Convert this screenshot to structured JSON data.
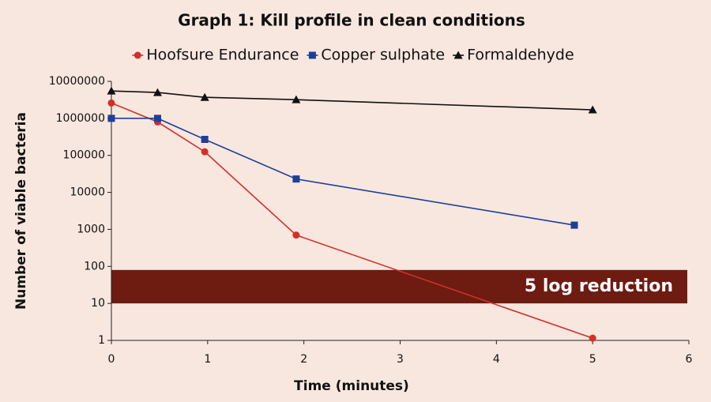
{
  "chart_data": {
    "type": "line",
    "title": "Graph 1: Kill profile in clean conditions",
    "x_label": "Time (minutes)",
    "y_label": "Number of viable bacteria",
    "y_log": true,
    "grid": false,
    "legend": "top",
    "xlim": [
      0,
      6
    ],
    "xticks": [
      0,
      1,
      2,
      3,
      4,
      5,
      6
    ],
    "ylim": [
      1,
      10000000
    ],
    "yticks": [
      1,
      10,
      100,
      1000,
      10000,
      100000,
      1000000,
      10000000
    ],
    "series": [
      {
        "name": "Hoofsure Endurance",
        "color": "#d2302a",
        "marker": "circle",
        "x": [
          0,
          0.48,
          0.97,
          1.92,
          5.0
        ],
        "values": [
          2600000,
          800000,
          125000,
          700,
          1.15
        ]
      },
      {
        "name": "Copper sulphate",
        "color": "#1f3f97",
        "marker": "square",
        "x": [
          0,
          0.48,
          0.97,
          1.92,
          4.81
        ],
        "values": [
          1000000,
          1000000,
          270000,
          23000,
          1300
        ]
      },
      {
        "name": "Formaldehyde",
        "color": "#111111",
        "marker": "triangle",
        "x": [
          0,
          0.48,
          0.97,
          1.92,
          5.0
        ],
        "values": [
          5500000,
          5000000,
          3700000,
          3200000,
          1700000
        ]
      }
    ],
    "band": {
      "text": "5 log reduction",
      "low": 10,
      "high": 80,
      "color": "#6e1b11"
    }
  }
}
